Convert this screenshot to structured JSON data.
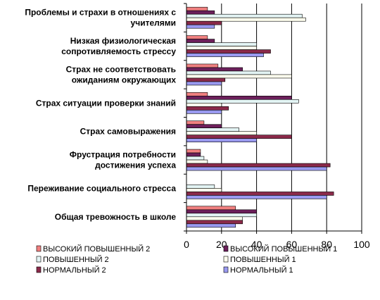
{
  "chart_data": {
    "type": "bar",
    "orientation": "horizontal",
    "categories": [
      [
        "Проблемы и страхи в отношениях с",
        "учителями"
      ],
      [
        "Низкая физиологическая",
        "сопротивляемость стрессу"
      ],
      [
        "Страх не соответствовать",
        "ожиданиям окружающих"
      ],
      [
        "Страх ситуации проверки знаний"
      ],
      [
        "Страх самовыражения"
      ],
      [
        "Фрустрация потребности",
        "достижения успеха"
      ],
      [
        "Переживание социального стресса"
      ],
      [
        "Общая тревожность в школе"
      ]
    ],
    "series": [
      {
        "name": "ВЫСОКИЙ ПОВЫШЕННЫЙ 2",
        "color": "#f08080",
        "values": [
          12,
          12,
          18,
          12,
          10,
          8,
          0,
          28
        ]
      },
      {
        "name": "ВЫСОКИЙ ПОВЫШЕННЫЙ 1",
        "color": "#6b1f5a",
        "values": [
          16,
          16,
          32,
          60,
          20,
          8,
          0,
          40
        ]
      },
      {
        "name": "ПОВЫШЕННЫЙ 2",
        "color": "#e3f4f4",
        "values": [
          66,
          40,
          48,
          64,
          30,
          10,
          16,
          40
        ]
      },
      {
        "name": "ПОВЫШЕННЫЙ 1",
        "color": "#ffffee",
        "values": [
          68,
          40,
          60,
          20,
          40,
          12,
          20,
          32
        ]
      },
      {
        "name": "НОРМАЛЬНЫЙ 2",
        "color": "#8b2a4a",
        "values": [
          20,
          48,
          22,
          24,
          60,
          82,
          84,
          32
        ]
      },
      {
        "name": "НОРМАЛЬНЫЙ 1",
        "color": "#9a9af0",
        "values": [
          16,
          44,
          20,
          20,
          40,
          80,
          80,
          28
        ]
      }
    ],
    "x_ticks": [
      "0",
      "20",
      "40",
      "60",
      "80",
      "100"
    ],
    "xlim": [
      0,
      100
    ],
    "grid": true,
    "legend_position": "bottom"
  }
}
